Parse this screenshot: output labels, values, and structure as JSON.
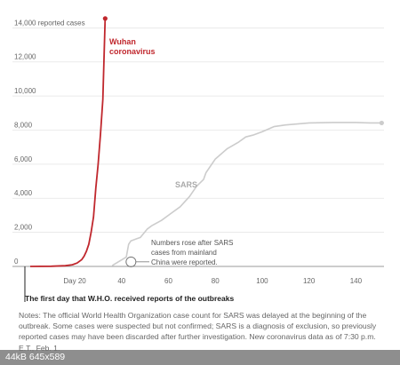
{
  "chart_data": {
    "type": "line",
    "x_ticks": [
      {
        "x": 20,
        "label": "Day 20"
      },
      {
        "x": 40,
        "label": "40"
      },
      {
        "x": 60,
        "label": "60"
      },
      {
        "x": 80,
        "label": "80"
      },
      {
        "x": 100,
        "label": "100"
      },
      {
        "x": 120,
        "label": "120"
      },
      {
        "x": 140,
        "label": "140"
      }
    ],
    "y_ticks": [
      {
        "y": 0,
        "label": "0"
      },
      {
        "y": 2000,
        "label": "2,000"
      },
      {
        "y": 4000,
        "label": "4,000"
      },
      {
        "y": 6000,
        "label": "6,000"
      },
      {
        "y": 8000,
        "label": "8,000"
      },
      {
        "y": 10000,
        "label": "10,000"
      },
      {
        "y": 12000,
        "label": "12,000"
      },
      {
        "y": 14000,
        "label": "14,000 reported cases"
      }
    ],
    "xlim": [
      1,
      152
    ],
    "ylim": [
      0,
      14800
    ],
    "grid": "horizontal",
    "series": [
      {
        "label_lines": [
          "Wuhan",
          "coronavirus"
        ],
        "color": "#c0272d",
        "end_marker": true,
        "x": [
          1,
          10,
          16,
          19,
          21,
          23,
          24,
          25,
          26,
          27,
          28,
          29,
          30,
          31,
          32,
          33
        ],
        "y": [
          0,
          10,
          40,
          100,
          200,
          400,
          600,
          900,
          1300,
          2000,
          2900,
          4600,
          6000,
          7800,
          9800,
          14550
        ]
      },
      {
        "label_lines": [
          "SARS"
        ],
        "color": "#cccccc",
        "end_marker": true,
        "x": [
          36,
          42,
          43,
          44,
          46,
          48,
          51,
          53,
          57,
          61,
          65,
          69,
          72,
          75,
          76,
          80,
          85,
          90,
          93,
          96,
          100,
          105,
          110,
          120,
          130,
          140,
          146,
          151
        ],
        "y": [
          50,
          550,
          1300,
          1500,
          1600,
          1700,
          2200,
          2400,
          2700,
          3100,
          3500,
          4100,
          4700,
          5100,
          5500,
          6300,
          6900,
          7300,
          7600,
          7700,
          7900,
          8200,
          8300,
          8420,
          8450,
          8450,
          8420,
          8420
        ]
      }
    ],
    "annotation": {
      "x": 44,
      "y": 400,
      "lines": [
        "Numbers rose after SARS",
        "cases from mainland",
        "China were reported."
      ]
    },
    "first_day_note": "The first day that W.H.O. received reports of the outbreaks",
    "notes": "Notes: The official World Health Organization case count for SARS was delayed at the beginning of the\noutbreak. Some cases were suspected but not confirmed; SARS is a diagnosis of exclusion, so previously\nreported cases may have been discarded after further investigation. New coronavirus data as of 7:30 p.m.\nE.T., Feb. 1."
  },
  "footer": {
    "text": "44kB  645x589"
  }
}
